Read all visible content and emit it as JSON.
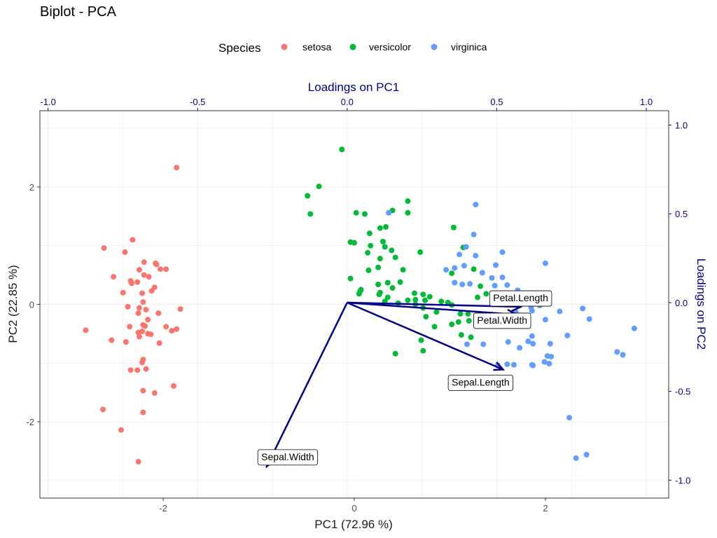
{
  "chart_data": {
    "type": "scatter",
    "title": "Biplot - PCA",
    "xlabel": "PC1 (72.96 %)",
    "ylabel": "PC2 (22.85 %)",
    "x2label": "Loadings on PC1",
    "y2label": "Loadings on PC2",
    "xlim": [
      -3.29,
      3.29
    ],
    "ylim": [
      -3.3,
      3.3
    ],
    "x_ticks": [
      -2,
      0,
      2
    ],
    "y_ticks": [
      -2,
      0,
      2
    ],
    "x2lim": [
      -1.0272,
      1.0748
    ],
    "y2lim": [
      -1.101,
      1.081
    ],
    "x2_ticks": [
      -1.0,
      -0.5,
      0.0,
      0.5,
      1.0
    ],
    "y2_ticks": [
      -1.0,
      -0.5,
      0.0,
      0.5,
      1.0
    ],
    "grid": true,
    "legend": {
      "title": "Species",
      "position": "top",
      "entries": [
        {
          "name": "setosa",
          "color": "#F8766D"
        },
        {
          "name": "versicolor",
          "color": "#00BA38"
        },
        {
          "name": "virginica",
          "color": "#619CFF"
        }
      ]
    },
    "series": [
      {
        "name": "setosa",
        "color": "#F8766D",
        "points": [
          [
            -1.86,
            2.33
          ],
          [
            -2.62,
            0.96
          ],
          [
            -2.52,
            0.47
          ],
          [
            -2.32,
            1.1
          ],
          [
            -2.4,
            0.89
          ],
          [
            -2.2,
            0.72
          ],
          [
            -2.25,
            0.59
          ],
          [
            -2.08,
            0.7
          ],
          [
            -2.07,
            0.68
          ],
          [
            -2.03,
            0.6
          ],
          [
            -1.97,
            0.6
          ],
          [
            -2.2,
            0.5
          ],
          [
            -2.27,
            0.38
          ],
          [
            -2.34,
            0.4
          ],
          [
            -2.33,
            0.36
          ],
          [
            -2.15,
            0.47
          ],
          [
            -2.09,
            0.29
          ],
          [
            -2.12,
            0.23
          ],
          [
            -2.22,
            0.19
          ],
          [
            -2.42,
            0.2
          ],
          [
            -2.21,
            0.04
          ],
          [
            -2.37,
            -0.04
          ],
          [
            -2.25,
            -0.06
          ],
          [
            -1.82,
            -0.08
          ],
          [
            -2.18,
            -0.09
          ],
          [
            -2.26,
            -0.15
          ],
          [
            -2.05,
            -0.15
          ],
          [
            -2.81,
            -0.44
          ],
          [
            -2.16,
            -0.26
          ],
          [
            -2.21,
            -0.35
          ],
          [
            -2.19,
            -0.37
          ],
          [
            -1.97,
            -0.38
          ],
          [
            -1.86,
            -0.42
          ],
          [
            -2.35,
            -0.38
          ],
          [
            -1.91,
            -0.45
          ],
          [
            -2.26,
            -0.48
          ],
          [
            -2.16,
            -0.5
          ],
          [
            -2.25,
            -0.55
          ],
          [
            -2.22,
            -0.46
          ],
          [
            -2.13,
            -0.51
          ],
          [
            -2.54,
            -0.61
          ],
          [
            -2.39,
            -0.64
          ],
          [
            -2.04,
            -0.66
          ],
          [
            -2.21,
            -0.94
          ],
          [
            -2.22,
            -0.99
          ],
          [
            -2.18,
            -1.1
          ],
          [
            -2.34,
            -1.12
          ],
          [
            -2.27,
            -1.12
          ],
          [
            -1.89,
            -1.39
          ],
          [
            -2.21,
            -1.47
          ],
          [
            -2.09,
            -1.51
          ],
          [
            -2.63,
            -1.79
          ],
          [
            -2.21,
            -1.84
          ],
          [
            -2.44,
            -2.14
          ],
          [
            -2.26,
            -2.68
          ]
        ]
      },
      {
        "name": "versicolor",
        "color": "#00BA38",
        "points": [
          [
            -0.13,
            2.64
          ],
          [
            -0.37,
            2.01
          ],
          [
            -0.49,
            1.85
          ],
          [
            -0.46,
            1.54
          ],
          [
            0.02,
            1.56
          ],
          [
            0.11,
            1.54
          ],
          [
            0.16,
            1.21
          ],
          [
            0.27,
            1.3
          ],
          [
            0.33,
            1.32
          ],
          [
            0.4,
            1.6
          ],
          [
            0.56,
            1.76
          ],
          [
            0.56,
            1.56
          ],
          [
            0.17,
            1.0
          ],
          [
            0.3,
            1.07
          ],
          [
            0.32,
            0.98
          ],
          [
            0.27,
            0.78
          ],
          [
            0.14,
            0.88
          ],
          [
            -0.04,
            1.06
          ],
          [
            0.0,
            1.05
          ],
          [
            0.39,
            0.92
          ],
          [
            0.25,
            0.63
          ],
          [
            0.15,
            0.58
          ],
          [
            0.35,
            0.37
          ],
          [
            0.25,
            0.34
          ],
          [
            0.4,
            0.28
          ],
          [
            -0.04,
            0.44
          ],
          [
            0.27,
            0.2
          ],
          [
            0.32,
            0.05
          ],
          [
            0.35,
            0.12
          ],
          [
            0.48,
            0.38
          ],
          [
            0.63,
            0.19
          ],
          [
            0.72,
            0.17
          ],
          [
            0.64,
            0.08
          ],
          [
            0.74,
            0.07
          ],
          [
            0.79,
            0.13
          ],
          [
            0.56,
            0.07
          ],
          [
            0.05,
            0.18
          ],
          [
            0.06,
            0.22
          ],
          [
            0.07,
            0.25
          ],
          [
            0.26,
            0.17
          ],
          [
            0.46,
            0.02
          ],
          [
            0.64,
            0.0
          ],
          [
            0.91,
            0.05
          ],
          [
            0.98,
            0.03
          ],
          [
            1.02,
            -0.01
          ],
          [
            0.72,
            -0.06
          ],
          [
            0.86,
            -0.13
          ],
          [
            0.75,
            -0.21
          ],
          [
            1.11,
            -0.16
          ],
          [
            1.19,
            -0.16
          ],
          [
            1.2,
            -0.28
          ],
          [
            1.09,
            -0.3
          ],
          [
            1.33,
            -0.28
          ],
          [
            0.84,
            -0.38
          ],
          [
            1.02,
            -0.34
          ],
          [
            1.32,
            0.31
          ],
          [
            1.29,
            0.12
          ],
          [
            1.02,
            0.53
          ],
          [
            1.25,
            0.6
          ],
          [
            1.14,
            0.97
          ],
          [
            0.69,
            0.89
          ],
          [
            0.43,
            0.8
          ],
          [
            0.51,
            0.59
          ],
          [
            1.38,
            0.18
          ],
          [
            1.04,
            1.31
          ],
          [
            1.22,
            -0.56
          ],
          [
            1.12,
            -0.52
          ],
          [
            0.7,
            -0.61
          ],
          [
            0.72,
            -0.79
          ],
          [
            0.43,
            -0.84
          ]
        ]
      },
      {
        "name": "virginica",
        "color": "#619CFF",
        "points": [
          [
            1.27,
            1.7
          ],
          [
            0.36,
            1.56
          ],
          [
            1.25,
            1.19
          ],
          [
            1.17,
            0.98
          ],
          [
            1.55,
            0.89
          ],
          [
            1.1,
            0.85
          ],
          [
            1.27,
            0.83
          ],
          [
            2.0,
            0.7
          ],
          [
            1.48,
            0.67
          ],
          [
            1.15,
            0.66
          ],
          [
            0.96,
            0.59
          ],
          [
            1.05,
            0.62
          ],
          [
            1.34,
            0.54
          ],
          [
            1.44,
            0.45
          ],
          [
            1.55,
            0.46
          ],
          [
            1.05,
            0.37
          ],
          [
            1.21,
            0.35
          ],
          [
            1.13,
            0.34
          ],
          [
            1.47,
            0.32
          ],
          [
            1.6,
            0.33
          ],
          [
            1.71,
            0.24
          ],
          [
            1.67,
            0.12
          ],
          [
            1.81,
            0.03
          ],
          [
            1.94,
            -0.02
          ],
          [
            1.85,
            -0.05
          ],
          [
            1.86,
            -0.11
          ],
          [
            1.69,
            -0.13
          ],
          [
            1.55,
            -0.2
          ],
          [
            2.15,
            -0.12
          ],
          [
            2.39,
            -0.07
          ],
          [
            2.93,
            -0.41
          ],
          [
            2.46,
            -0.25
          ],
          [
            2.0,
            -0.26
          ],
          [
            2.23,
            -0.53
          ],
          [
            1.86,
            -0.54
          ],
          [
            1.61,
            -0.64
          ],
          [
            1.87,
            -0.67
          ],
          [
            1.82,
            -0.63
          ],
          [
            2.05,
            -0.67
          ],
          [
            1.73,
            -0.74
          ],
          [
            1.35,
            -0.68
          ],
          [
            1.18,
            -0.68
          ],
          [
            2.02,
            -0.88
          ],
          [
            2.06,
            -0.89
          ],
          [
            1.99,
            -0.98
          ],
          [
            2.04,
            -1.01
          ],
          [
            1.6,
            -1.02
          ],
          [
            1.5,
            -1.04
          ],
          [
            1.67,
            -1.03
          ],
          [
            1.86,
            -1.03
          ],
          [
            2.75,
            -0.81
          ],
          [
            2.81,
            -0.86
          ],
          [
            1.87,
            -1.04
          ],
          [
            2.25,
            -1.93
          ],
          [
            2.32,
            -2.62
          ],
          [
            2.43,
            -2.56
          ]
        ]
      }
    ],
    "loadings": [
      {
        "name": "Sepal.Length",
        "pc1": 0.521,
        "pc2": -0.377
      },
      {
        "name": "Sepal.Width",
        "pc1": -0.269,
        "pc2": -0.923
      },
      {
        "name": "Petal.Length",
        "pc1": 0.58,
        "pc2": -0.024
      },
      {
        "name": "Petal.Width",
        "pc1": 0.565,
        "pc2": -0.067
      }
    ]
  }
}
